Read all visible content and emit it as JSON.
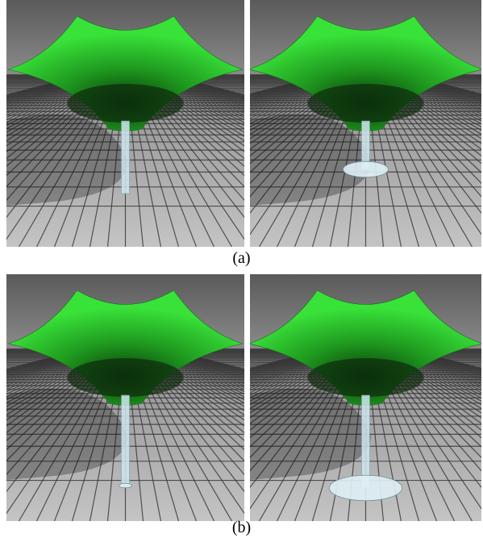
{
  "figure": {
    "captions": [
      "(a)",
      "(b)"
    ]
  }
}
